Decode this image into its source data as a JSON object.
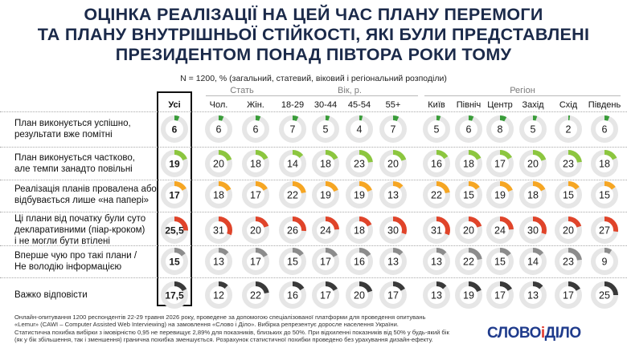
{
  "title": {
    "line1": "ОЦІНКА РЕАЛІЗАЦІЇ НА ЦЕЙ ЧАС ПЛАНУ ПЕРЕМОГИ",
    "line2": "ТА ПЛАНУ ВНУТРІШНЬОЇ СТІЙКОСТІ, ЯКІ БУЛИ ПРЕДСТАВЛЕНІ",
    "line3": "ПРЕЗИДЕНТОМ ПОНАД ПІВТОРА РОКИ ТОМУ"
  },
  "subtitle": "N = 1200, % (загальний, статевий, віковий і регіональний розподіли)",
  "groups": {
    "sex": "Стать",
    "age": "Вік, р.",
    "region": "Регіон"
  },
  "columns": [
    "Усі",
    "Чол.",
    "Жін.",
    "18-29",
    "30-44",
    "45-54",
    "55+",
    "Київ",
    "Північ",
    "Центр",
    "Захід",
    "Схід",
    "Південь"
  ],
  "rows": [
    {
      "label1": "План виконується успішно,",
      "label2": "результати вже помітні"
    },
    {
      "label1": "План виконується частково,",
      "label2": "але темпи занадто повільні"
    },
    {
      "label1": "Реалізація планів провалена або",
      "label2": "відбувається лише «на папері»"
    },
    {
      "label1": "Ці плани від початку були суто",
      "label2": "декларативними (піар-кроком)",
      "label3": "і не могли бути втілені"
    },
    {
      "label1": "Вперше чую про такі плани /",
      "label2": "Не володію інформацією"
    },
    {
      "label1": "Важко відповісти"
    }
  ],
  "chart_data": {
    "type": "table",
    "title": "ОЦІНКА РЕАЛІЗАЦІЇ НА ЦЕЙ ЧАС ПЛАНУ ПЕРЕМОГИ ТА ПЛАНУ ВНУТРІШНЬОЇ СТІЙКОСТІ, ЯКІ БУЛИ ПРЕДСТАВЛЕНІ ПРЕЗИДЕНТОМ ПОНАД ПІВТОРА РОКИ ТОМУ",
    "columns": [
      "Усі",
      "Чол.",
      "Жін.",
      "18-29",
      "30-44",
      "45-54",
      "55+",
      "Київ",
      "Північ",
      "Центр",
      "Захід",
      "Схід",
      "Південь"
    ],
    "series": [
      {
        "name": "План виконується успішно, результати вже помітні",
        "color": "#3a9d3a",
        "values": [
          6,
          6,
          6,
          7,
          5,
          4,
          7,
          5,
          6,
          8,
          5,
          2,
          6
        ],
        "labels": [
          "6",
          "6",
          "6",
          "7",
          "5",
          "4",
          "7",
          "5",
          "6",
          "8",
          "5",
          "2",
          "6"
        ]
      },
      {
        "name": "План виконується частково, але темпи занадто повільні",
        "color": "#8cc63f",
        "values": [
          19,
          20,
          18,
          14,
          18,
          23,
          20,
          16,
          18,
          17,
          20,
          23,
          18
        ],
        "labels": [
          "19",
          "20",
          "18",
          "14",
          "18",
          "23",
          "20",
          "16",
          "18",
          "17",
          "20",
          "23",
          "18"
        ]
      },
      {
        "name": "Реалізація планів провалена або відбувається лише «на папері»",
        "color": "#f6a623",
        "values": [
          17,
          18,
          17,
          22,
          19,
          19,
          13,
          22,
          15,
          19,
          18,
          15,
          15
        ],
        "labels": [
          "17",
          "18",
          "17",
          "22",
          "19",
          "19",
          "13",
          "22",
          "15",
          "19",
          "18",
          "15",
          "15"
        ]
      },
      {
        "name": "Ці плани від початку були суто декларативними (піар-кроком) і не могли бути втілені",
        "color": "#e0442a",
        "values": [
          25.5,
          31,
          20,
          26,
          24,
          18,
          30,
          31,
          20,
          24,
          30,
          20,
          27
        ],
        "labels": [
          "25,5",
          "31",
          "20",
          "26",
          "24",
          "18",
          "30",
          "31",
          "20",
          "24",
          "30",
          "20",
          "27"
        ]
      },
      {
        "name": "Вперше чую про такі плани / Не володію інформацією",
        "color": "#8c8c8c",
        "values": [
          15,
          13,
          17,
          15,
          17,
          16,
          13,
          13,
          22,
          15,
          14,
          23,
          9
        ],
        "labels": [
          "15",
          "13",
          "17",
          "15",
          "17",
          "16",
          "13",
          "13",
          "22",
          "15",
          "14",
          "23",
          "9"
        ]
      },
      {
        "name": "Важко відповісти",
        "color": "#3a3a3a",
        "values": [
          17.5,
          12,
          22,
          16,
          17,
          20,
          17,
          13,
          19,
          17,
          13,
          17,
          25
        ],
        "labels": [
          "17,5",
          "12",
          "22",
          "16",
          "17",
          "20",
          "17",
          "13",
          "19",
          "17",
          "13",
          "17",
          "25"
        ]
      }
    ],
    "ring_track_color": "#e6e6e6"
  },
  "footer": {
    "line1": "Онлайн-опитування 1200 респондентів 22-29 травня 2026 року, проведене за допомогою спеціалізованої платформи для проведення опитувань",
    "line2": "«Lemur» (CAWI – Computer Assisted Web Interviewing) на замовлення «Слово і Діло». Вибірка репрезентує доросле населення України.",
    "line3": "Статистична похибка вибірки з імовірністю 0,95 не перевищує 2,89% для показників, близьких до 50%. При відхиленні показників від 50% у будь-який бік",
    "line4": "(як у бік збільшення, так і зменшення) гранична похибка зменшується. Розрахунок статистичної похибки проведено без урахування дизайн-ефекту."
  },
  "logo": {
    "part1": "СЛОВО",
    "amp": "і",
    "part2": "ДІЛО"
  }
}
